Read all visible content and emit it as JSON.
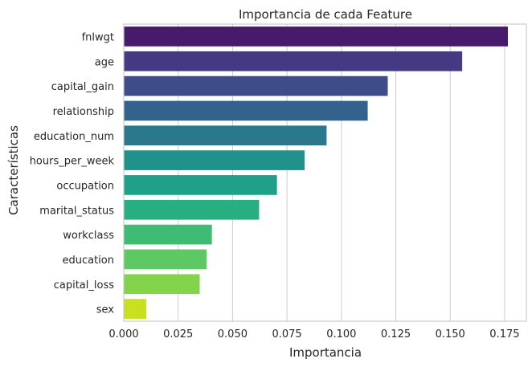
{
  "chart_data": {
    "type": "bar",
    "orientation": "horizontal",
    "title": "Importancia de cada Feature",
    "xlabel": "Importancia",
    "ylabel": "Características",
    "categories": [
      "fnlwgt",
      "age",
      "capital_gain",
      "relationship",
      "education_num",
      "hours_per_week",
      "occupation",
      "marital_status",
      "workclass",
      "education",
      "capital_loss",
      "sex"
    ],
    "values": [
      0.1765,
      0.1555,
      0.1213,
      0.1121,
      0.0932,
      0.0831,
      0.0704,
      0.0622,
      0.0405,
      0.0381,
      0.0349,
      0.0104
    ],
    "colors": [
      "#481a6c",
      "#443a83",
      "#3e4c8a",
      "#33638d",
      "#2a788e",
      "#21918c",
      "#1fa088",
      "#28ae80",
      "#3fbc73",
      "#5ec962",
      "#84d44b",
      "#c8e020"
    ],
    "xlim": [
      0,
      0.185
    ],
    "xticks": [
      0.0,
      0.025,
      0.05,
      0.075,
      0.1,
      0.125,
      0.15,
      0.175
    ],
    "xtick_labels": [
      "0.000",
      "0.025",
      "0.050",
      "0.075",
      "0.100",
      "0.125",
      "0.150",
      "0.175"
    ],
    "grid": "vertical",
    "background": "#ffffff",
    "grid_color": "#cccccc",
    "legend": "none"
  }
}
